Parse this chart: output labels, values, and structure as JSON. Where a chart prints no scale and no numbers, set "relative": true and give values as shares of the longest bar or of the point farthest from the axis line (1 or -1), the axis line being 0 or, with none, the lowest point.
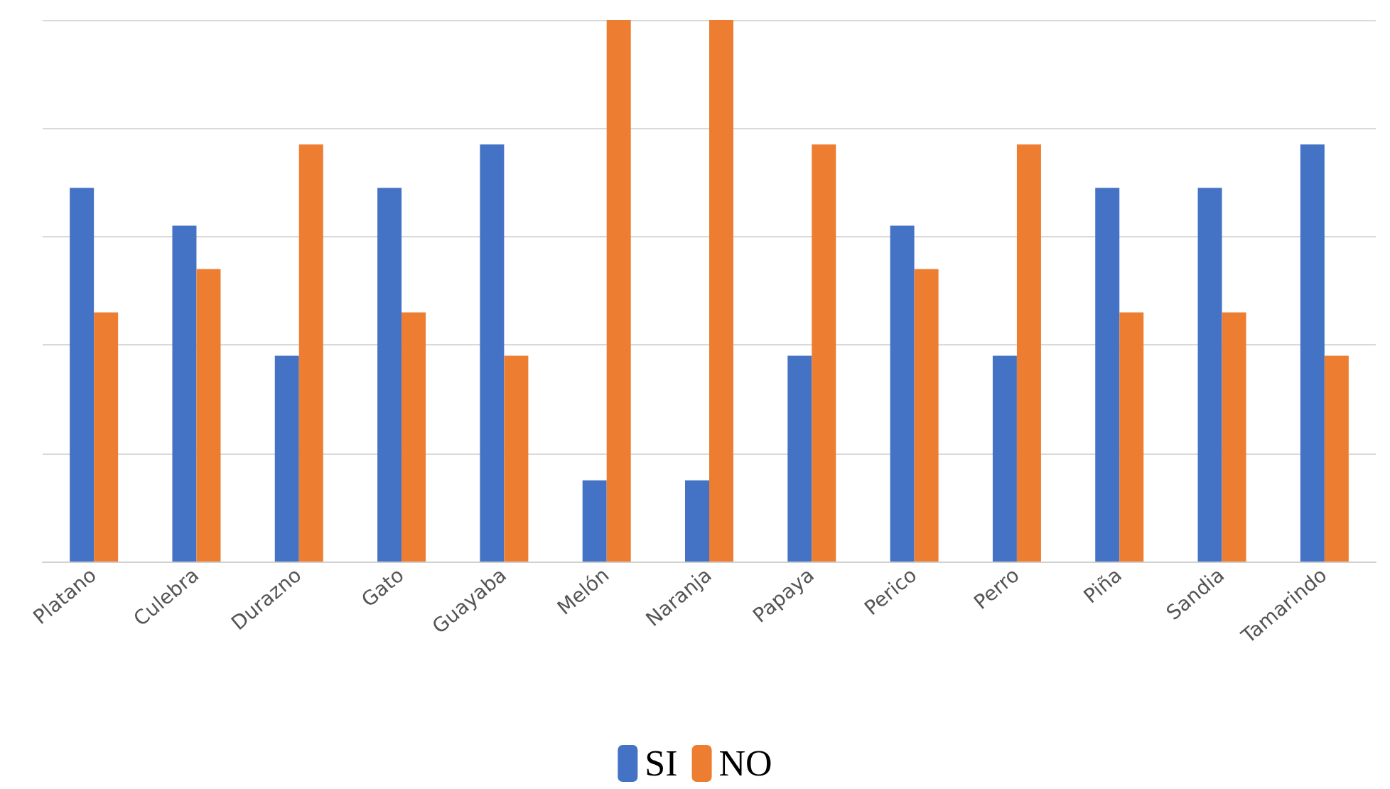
{
  "chart_data": {
    "type": "bar",
    "relative": true,
    "grid": "y",
    "legend": "bottom",
    "categories": [
      "Platano",
      "Culebra",
      "Durazno",
      "Gato",
      "Guayaba",
      "Melón",
      "Naranja",
      "Papaya",
      "Perico",
      "Perro",
      "Piña",
      "Sandia",
      "Tamarindo"
    ],
    "series": [
      {
        "name": "SI",
        "color": "#4472c4",
        "values": [
          0.69,
          0.62,
          0.38,
          0.69,
          0.77,
          0.15,
          0.15,
          0.38,
          0.62,
          0.38,
          0.69,
          0.69,
          0.77
        ]
      },
      {
        "name": "NO",
        "color": "#ed7d31",
        "values": [
          0.46,
          0.54,
          0.77,
          0.46,
          0.38,
          1,
          1,
          0.77,
          0.54,
          0.77,
          0.46,
          0.46,
          0.38
        ]
      }
    ]
  }
}
